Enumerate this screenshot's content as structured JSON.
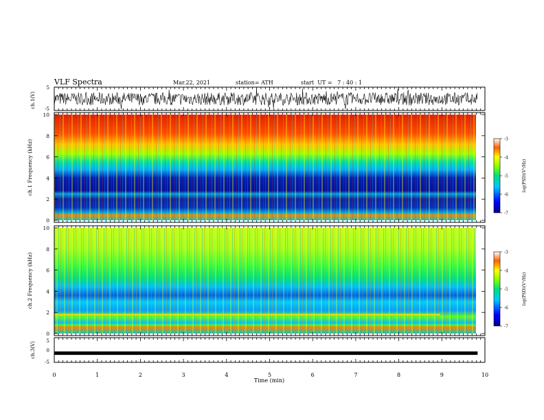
{
  "header": {
    "title": "VLF Spectra",
    "date": "Mar.22, 2021",
    "station": "station= ATH",
    "start": "start  UT =   7 : 40 : 1"
  },
  "colors": {
    "spectrogram_low": "#00008b",
    "spectrogram_mid": "#00e5c0",
    "spectrogram_high": "#d40000",
    "waveform": "#000000"
  },
  "chart_data": [
    {
      "type": "line",
      "panel": "ch1-waveform",
      "ylabel": "ch.1(V)",
      "ylim": [
        -5,
        5
      ],
      "yticks": [
        "5",
        "-5"
      ],
      "xlim": [
        0,
        10
      ],
      "series": [
        {
          "x": [
            0,
            9.83
          ],
          "values": [
            0,
            0
          ]
        }
      ]
    },
    {
      "type": "heatmap",
      "panel": "ch1-spectrogram",
      "ylabel": "ch.1 Frequency (kHz)",
      "ylim": [
        0,
        10
      ],
      "yticks": [
        "0",
        "2",
        "4",
        "6",
        "8",
        "10"
      ],
      "xlim": [
        0,
        10
      ],
      "colorbar": {
        "label": "log(PSD)(V²/Hz)",
        "ticks": [
          "-3",
          "-4",
          "-5",
          "-6",
          "-7"
        ],
        "range": [
          -7,
          -3
        ]
      }
    },
    {
      "type": "heatmap",
      "panel": "ch2-spectrogram",
      "ylabel": "ch.2 Frequency (kHz)",
      "ylim": [
        0,
        10
      ],
      "yticks": [
        "0",
        "2",
        "4",
        "6",
        "8",
        "10"
      ],
      "xlim": [
        0,
        10
      ],
      "colorbar": {
        "label": "log(PSD)(V²/Hz)",
        "ticks": [
          "-3",
          "-4",
          "-5",
          "-6",
          "-7"
        ],
        "range": [
          -7,
          -3
        ]
      }
    },
    {
      "type": "line",
      "panel": "ch3-waveform",
      "ylabel": "ch.3(V)",
      "ylim": [
        -5,
        5
      ],
      "yticks": [
        "5",
        "0",
        "-5"
      ],
      "xlim": [
        0,
        10
      ],
      "series": [
        {
          "x": [
            0,
            9.83
          ],
          "values": [
            -1.3,
            -1.3
          ]
        }
      ]
    }
  ],
  "xaxis": {
    "label": "Time (min)",
    "ticks": [
      "0",
      "1",
      "2",
      "3",
      "4",
      "5",
      "6",
      "7",
      "8",
      "9",
      "10"
    ]
  }
}
